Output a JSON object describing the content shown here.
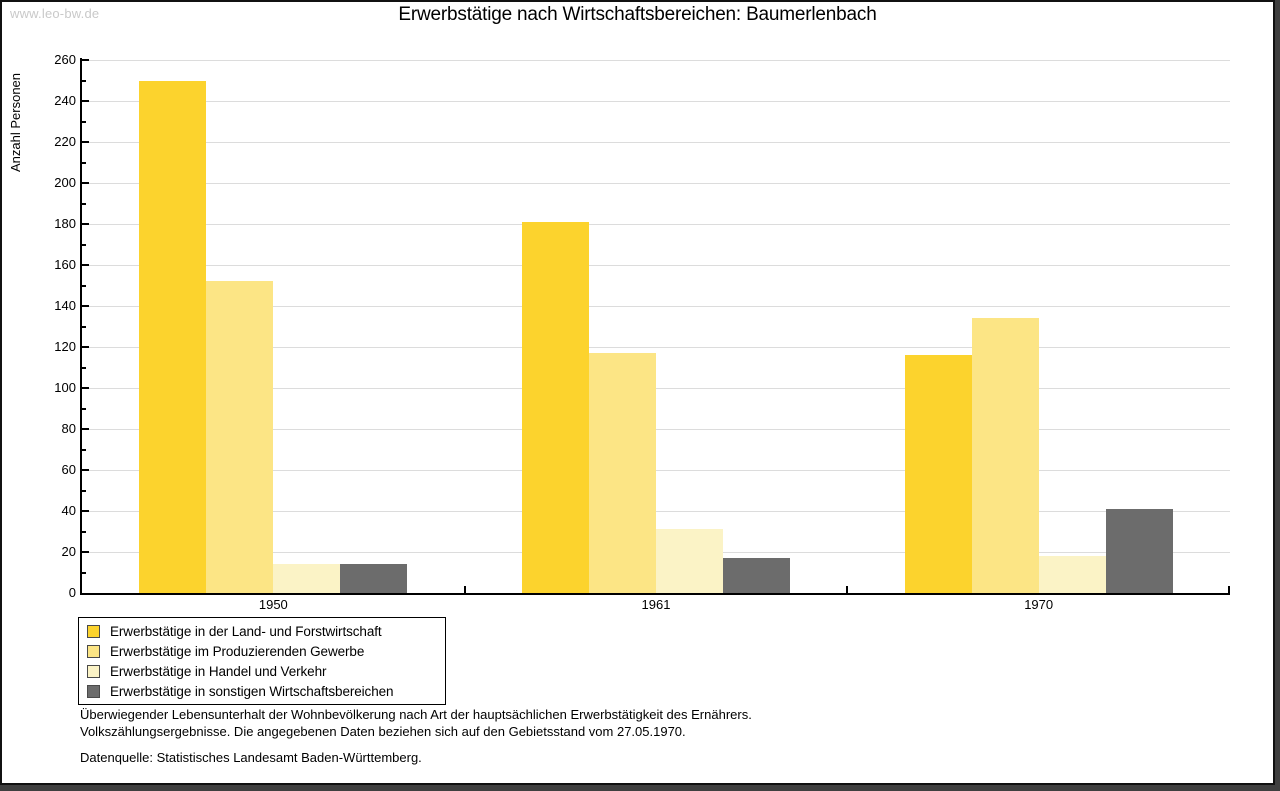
{
  "watermark": "www.leo-bw.de",
  "title": "Erwerbstätige nach Wirtschaftsbereichen: Baumerlenbach",
  "chart_data": {
    "type": "bar",
    "title": "Erwerbstätige nach Wirtschaftsbereichen: Baumerlenbach",
    "xlabel": "",
    "ylabel": "Anzahl Personen",
    "categories": [
      "1950",
      "1961",
      "1970"
    ],
    "series": [
      {
        "name": "Erwerbstätige in der Land- und Forstwirtschaft",
        "color": "#FCD32D",
        "values": [
          250,
          181,
          116
        ]
      },
      {
        "name": "Erwerbstätige im Produzierenden Gewerbe",
        "color": "#FCE585",
        "values": [
          152,
          117,
          134
        ]
      },
      {
        "name": "Erwerbstätige in Handel und Verkehr",
        "color": "#FBF3C6",
        "values": [
          14,
          31,
          18
        ]
      },
      {
        "name": "Erwerbstätige in sonstigen Wirtschaftsbereichen",
        "color": "#6C6C6C",
        "values": [
          14,
          17,
          41
        ]
      }
    ],
    "ylim": [
      0,
      260
    ],
    "ytick_step": 20,
    "yminor_step": 10,
    "grid": true,
    "gridline_color": "#dcdcdc",
    "axis_color": "#000000",
    "legend_position": "bottom-left"
  },
  "notes": {
    "line1": "Überwiegender Lebensunterhalt der Wohnbevölkerung nach Art der hauptsächlichen Erwerbstätigkeit des Ernährers.",
    "line2": "Volkszählungsergebnisse. Die angegebenen Daten beziehen sich auf den Gebietsstand vom 27.05.1970.",
    "source": "Datenquelle: Statistisches Landesamt Baden-Württemberg."
  }
}
